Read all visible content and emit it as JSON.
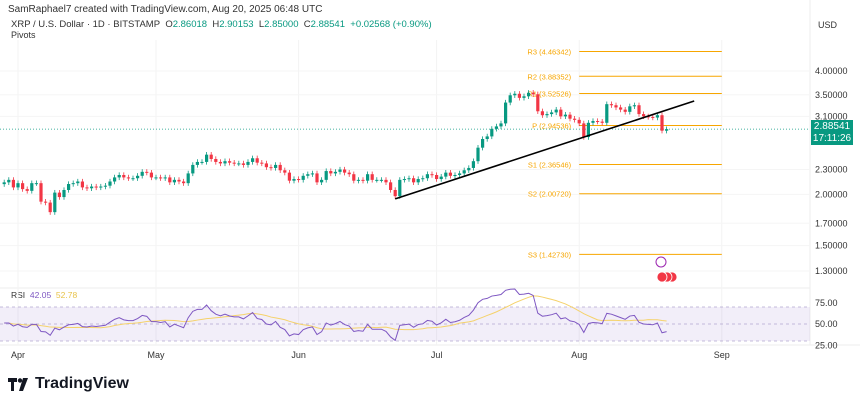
{
  "header": {
    "credit": "SamRaphael7 created with TradingView.com, Aug 20, 2025 06:48 UTC",
    "symbol": "XRP / U.S. Dollar · 1D · BITSTAMP",
    "o_label": "O",
    "o": "2.86018",
    "h_label": "H",
    "h": "2.90153",
    "l_label": "L",
    "l": "2.85000",
    "c_label": "C",
    "c": "2.88541",
    "change": "+0.02568 (+0.90%)",
    "indicator": "Pivots",
    "currency": "USD"
  },
  "price_badge": {
    "price": "2.88541",
    "countdown": "17:11:26"
  },
  "rsi": {
    "label": "RSI",
    "value": "42.05",
    "ma_value": "52.78",
    "ticks": [
      "75.00",
      "50.00",
      "25.00"
    ]
  },
  "logo": "TradingView",
  "colors": {
    "up": "#089981",
    "down": "#f23645",
    "pivot": "#f7a600",
    "rsi": "#7e57c2",
    "rsi_ma": "#f5d26b",
    "trendline": "#000000"
  },
  "chart_data": {
    "type": "candlestick",
    "scale": "log",
    "start_date": "2025-03-29",
    "interval": "1D",
    "closes": [
      2.14,
      2.17,
      2.08,
      2.13,
      2.06,
      2.04,
      2.13,
      2.13,
      1.92,
      1.91,
      1.81,
      2.02,
      1.97,
      2.05,
      2.12,
      2.13,
      2.15,
      2.08,
      2.07,
      2.09,
      2.08,
      2.09,
      2.1,
      2.15,
      2.2,
      2.23,
      2.2,
      2.19,
      2.19,
      2.22,
      2.27,
      2.26,
      2.2,
      2.2,
      2.19,
      2.2,
      2.14,
      2.17,
      2.15,
      2.13,
      2.25,
      2.36,
      2.4,
      2.4,
      2.5,
      2.44,
      2.4,
      2.38,
      2.41,
      2.39,
      2.38,
      2.38,
      2.36,
      2.4,
      2.45,
      2.39,
      2.38,
      2.33,
      2.32,
      2.36,
      2.29,
      2.26,
      2.16,
      2.18,
      2.17,
      2.22,
      2.24,
      2.25,
      2.14,
      2.17,
      2.28,
      2.25,
      2.27,
      2.3,
      2.26,
      2.24,
      2.16,
      2.17,
      2.16,
      2.24,
      2.17,
      2.17,
      2.17,
      2.14,
      2.05,
      1.98,
      2.17,
      2.18,
      2.19,
      2.14,
      2.18,
      2.19,
      2.24,
      2.23,
      2.18,
      2.21,
      2.26,
      2.22,
      2.23,
      2.25,
      2.29,
      2.32,
      2.41,
      2.6,
      2.73,
      2.77,
      2.89,
      2.93,
      2.98,
      3.35,
      3.49,
      3.52,
      3.44,
      3.47,
      3.54,
      3.51,
      3.19,
      3.12,
      3.14,
      3.17,
      3.22,
      3.1,
      3.13,
      3.06,
      3.04,
      2.98,
      2.76,
      2.99,
      3.02,
      3.01,
      2.99,
      3.32,
      3.3,
      3.26,
      3.22,
      3.18,
      3.28,
      3.3,
      3.14,
      3.1,
      3.09,
      3.08,
      3.12,
      2.86,
      2.88541
    ],
    "x_ticks": [
      {
        "label": "Apr",
        "date": "2025-04-01"
      },
      {
        "label": "May",
        "date": "2025-05-01"
      },
      {
        "label": "Jun",
        "date": "2025-06-01"
      },
      {
        "label": "Jul",
        "date": "2025-07-01"
      },
      {
        "label": "Aug",
        "date": "2025-08-01"
      },
      {
        "label": "Sep",
        "date": "2025-09-01"
      }
    ],
    "y_ticks": [
      "4.00000",
      "3.50000",
      "3.10000",
      "2.30000",
      "2.00000",
      "1.70000",
      "1.50000",
      "1.30000"
    ],
    "pivots": {
      "from": "2025-08-01",
      "to": "2025-09-01",
      "levels": [
        {
          "name": "R3",
          "value": 4.46342,
          "label": "R3 (4.46342)"
        },
        {
          "name": "R2",
          "value": 3.88352,
          "label": "R2 (3.88352)"
        },
        {
          "name": "R1",
          "value": 3.52526,
          "label": "R1 (3.52526)"
        },
        {
          "name": "P",
          "value": 2.94536,
          "label": "P (2.94536)"
        },
        {
          "name": "S1",
          "value": 2.36546,
          "label": "S1 (2.36546)"
        },
        {
          "name": "S2",
          "value": 2.0072,
          "label": "S2 (2.00720)"
        },
        {
          "name": "S3",
          "value": 1.4273,
          "label": "S3 (1.42730)"
        }
      ]
    },
    "trendline": [
      {
        "date": "2025-06-22",
        "price": 1.95
      },
      {
        "date": "2025-08-26",
        "price": 3.38
      }
    ],
    "last_price": 2.88541
  }
}
